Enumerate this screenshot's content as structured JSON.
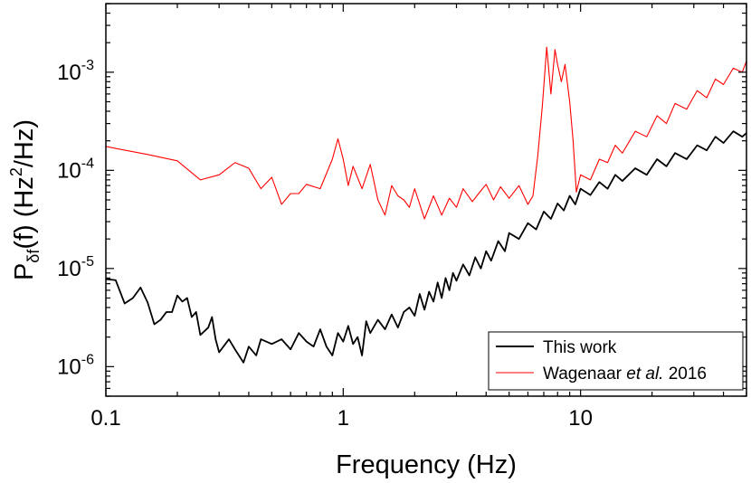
{
  "chart_data": {
    "type": "line",
    "x_scale": "log",
    "y_scale": "log",
    "xlim": [
      0.1,
      50
    ],
    "ylim": [
      5e-07,
      0.005
    ],
    "xlabel": "Frequency (Hz)",
    "ylabel": {
      "main": "P",
      "sub": "δf",
      "rest": "(f)  (Hz",
      "sup": "2",
      "end": "/Hz)"
    },
    "x_ticks": [
      {
        "value": 0.1,
        "label": "0.1"
      },
      {
        "value": 1,
        "label": "1"
      },
      {
        "value": 10,
        "label": "10"
      }
    ],
    "y_ticks": [
      {
        "value": 1e-06,
        "base": "10",
        "exp": "-6"
      },
      {
        "value": 1e-05,
        "base": "10",
        "exp": "-5"
      },
      {
        "value": 0.0001,
        "base": "10",
        "exp": "-4"
      },
      {
        "value": 0.001,
        "base": "10",
        "exp": "-3"
      }
    ],
    "grid": false,
    "legend_position": "bottom-right",
    "legend": [
      {
        "text": "This work",
        "color": "#000000"
      },
      {
        "text_parts": [
          "Wagenaar ",
          "et al.",
          " 2016"
        ],
        "color": "#ff0000"
      }
    ],
    "series": [
      {
        "name": "This work",
        "color": "#000000",
        "points": [
          [
            0.1,
            7.8e-06
          ],
          [
            0.11,
            7.6e-06
          ],
          [
            0.12,
            4.4e-06
          ],
          [
            0.13,
            5e-06
          ],
          [
            0.14,
            6.4e-06
          ],
          [
            0.15,
            4.5e-06
          ],
          [
            0.16,
            2.7e-06
          ],
          [
            0.17,
            3e-06
          ],
          [
            0.18,
            3.6e-06
          ],
          [
            0.19,
            3.6e-06
          ],
          [
            0.2,
            5.3e-06
          ],
          [
            0.21,
            4.6e-06
          ],
          [
            0.22,
            5e-06
          ],
          [
            0.23,
            3.2e-06
          ],
          [
            0.24,
            3.6e-06
          ],
          [
            0.25,
            2.1e-06
          ],
          [
            0.27,
            2.5e-06
          ],
          [
            0.28,
            3.2e-06
          ],
          [
            0.29,
            1.9e-06
          ],
          [
            0.3,
            1.4e-06
          ],
          [
            0.33,
            1.9e-06
          ],
          [
            0.35,
            1.5e-06
          ],
          [
            0.38,
            1.1e-06
          ],
          [
            0.4,
            1.6e-06
          ],
          [
            0.43,
            1.3e-06
          ],
          [
            0.45,
            1.9e-06
          ],
          [
            0.5,
            1.7e-06
          ],
          [
            0.55,
            1.9e-06
          ],
          [
            0.6,
            1.5e-06
          ],
          [
            0.65,
            2.2e-06
          ],
          [
            0.7,
            1.8e-06
          ],
          [
            0.75,
            1.6e-06
          ],
          [
            0.8,
            2.4e-06
          ],
          [
            0.85,
            1.6e-06
          ],
          [
            0.9,
            1.3e-06
          ],
          [
            0.95,
            2.2e-06
          ],
          [
            1.0,
            1.8e-06
          ],
          [
            1.05,
            2.6e-06
          ],
          [
            1.1,
            1.7e-06
          ],
          [
            1.15,
            2e-06
          ],
          [
            1.2,
            1.3e-06
          ],
          [
            1.25,
            2.9e-06
          ],
          [
            1.3,
            2.2e-06
          ],
          [
            1.4,
            3e-06
          ],
          [
            1.5,
            2.4e-06
          ],
          [
            1.6,
            3.4e-06
          ],
          [
            1.7,
            2.5e-06
          ],
          [
            1.8,
            3.6e-06
          ],
          [
            1.9,
            4e-06
          ],
          [
            2.0,
            3.3e-06
          ],
          [
            2.1,
            5.5e-06
          ],
          [
            2.2,
            3.8e-06
          ],
          [
            2.3,
            5.8e-06
          ],
          [
            2.4,
            4.6e-06
          ],
          [
            2.5,
            7.2e-06
          ],
          [
            2.6,
            5e-06
          ],
          [
            2.7,
            8e-06
          ],
          [
            2.8,
            6e-06
          ],
          [
            2.9,
            9e-06
          ],
          [
            3.0,
            7.5e-06
          ],
          [
            3.2,
            1.1e-05
          ],
          [
            3.4,
            8.5e-06
          ],
          [
            3.6,
            1.3e-05
          ],
          [
            3.8,
            1e-05
          ],
          [
            4.0,
            1.5e-05
          ],
          [
            4.2,
            1.2e-05
          ],
          [
            4.5,
            1.9e-05
          ],
          [
            4.8,
            1.5e-05
          ],
          [
            5.0,
            2.3e-05
          ],
          [
            5.5,
            2e-05
          ],
          [
            6.0,
            2.9e-05
          ],
          [
            6.5,
            2.5e-05
          ],
          [
            7.0,
            3.8e-05
          ],
          [
            7.5,
            3.2e-05
          ],
          [
            8.0,
            4.6e-05
          ],
          [
            8.5,
            3.9e-05
          ],
          [
            9.0,
            5.5e-05
          ],
          [
            9.5,
            4.5e-05
          ],
          [
            10.0,
            6.5e-05
          ],
          [
            11.0,
            5.6e-05
          ],
          [
            12.0,
            7.6e-05
          ],
          [
            13.0,
            6.5e-05
          ],
          [
            14.0,
            9e-05
          ],
          [
            15.0,
            7.8e-05
          ],
          [
            17.0,
            0.000105
          ],
          [
            19.0,
            9e-05
          ],
          [
            21.0,
            0.00013
          ],
          [
            23.0,
            0.00011
          ],
          [
            25.0,
            0.00015
          ],
          [
            28.0,
            0.00013
          ],
          [
            31.0,
            0.00018
          ],
          [
            34.0,
            0.00016
          ],
          [
            37.0,
            0.00022
          ],
          [
            40.0,
            0.00019
          ],
          [
            44.0,
            0.00025
          ],
          [
            48.0,
            0.00022
          ],
          [
            50.0,
            0.00024
          ]
        ]
      },
      {
        "name": "Wagenaar et al. 2016",
        "color": "#ff0000",
        "points": [
          [
            0.1,
            0.000175
          ],
          [
            0.15,
            0.000145
          ],
          [
            0.2,
            0.000125
          ],
          [
            0.25,
            8e-05
          ],
          [
            0.3,
            9e-05
          ],
          [
            0.35,
            0.00012
          ],
          [
            0.4,
            0.000105
          ],
          [
            0.45,
            6.5e-05
          ],
          [
            0.5,
            8.5e-05
          ],
          [
            0.55,
            4.5e-05
          ],
          [
            0.6,
            5.8e-05
          ],
          [
            0.65,
            5.8e-05
          ],
          [
            0.7,
            7.2e-05
          ],
          [
            0.8,
            6.5e-05
          ],
          [
            0.9,
            0.00013
          ],
          [
            0.95,
            0.00021
          ],
          [
            1.0,
            0.00013
          ],
          [
            1.05,
            7e-05
          ],
          [
            1.1,
            0.00011
          ],
          [
            1.2,
            6.5e-05
          ],
          [
            1.3,
            0.000115
          ],
          [
            1.4,
            5e-05
          ],
          [
            1.5,
            3.5e-05
          ],
          [
            1.6,
            7e-05
          ],
          [
            1.7,
            5.5e-05
          ],
          [
            1.8,
            5e-05
          ],
          [
            1.9,
            4.2e-05
          ],
          [
            2.0,
            6.5e-05
          ],
          [
            2.2,
            3.2e-05
          ],
          [
            2.4,
            5.5e-05
          ],
          [
            2.6,
            3.5e-05
          ],
          [
            2.8,
            5.2e-05
          ],
          [
            3.0,
            4.2e-05
          ],
          [
            3.2,
            6.5e-05
          ],
          [
            3.5,
            4.8e-05
          ],
          [
            3.8,
            6.2e-05
          ],
          [
            4.0,
            7.2e-05
          ],
          [
            4.3,
            5e-05
          ],
          [
            4.6,
            6.8e-05
          ],
          [
            5.0,
            5.2e-05
          ],
          [
            5.5,
            7e-05
          ],
          [
            6.0,
            4.5e-05
          ],
          [
            6.3,
            5.5e-05
          ],
          [
            6.6,
            0.00014
          ],
          [
            6.9,
            0.00045
          ],
          [
            7.2,
            0.0018
          ],
          [
            7.5,
            0.0006
          ],
          [
            7.8,
            0.0017
          ],
          [
            8.0,
            0.0012
          ],
          [
            8.3,
            0.0008
          ],
          [
            8.6,
            0.0012
          ],
          [
            9.0,
            0.0005
          ],
          [
            9.3,
            0.0002
          ],
          [
            9.6,
            6e-05
          ],
          [
            10.0,
            9e-05
          ],
          [
            11.0,
            8e-05
          ],
          [
            12.0,
            0.00013
          ],
          [
            13.0,
            0.00012
          ],
          [
            14.0,
            0.00018
          ],
          [
            15.0,
            0.00015
          ],
          [
            17.0,
            0.00025
          ],
          [
            19.0,
            0.00022
          ],
          [
            21.0,
            0.00036
          ],
          [
            23.0,
            0.0003
          ],
          [
            25.0,
            0.00048
          ],
          [
            28.0,
            0.00042
          ],
          [
            31.0,
            0.00065
          ],
          [
            34.0,
            0.00055
          ],
          [
            37.0,
            0.00085
          ],
          [
            40.0,
            0.00075
          ],
          [
            44.0,
            0.0011
          ],
          [
            48.0,
            0.001
          ],
          [
            50.0,
            0.0013
          ]
        ]
      }
    ]
  }
}
